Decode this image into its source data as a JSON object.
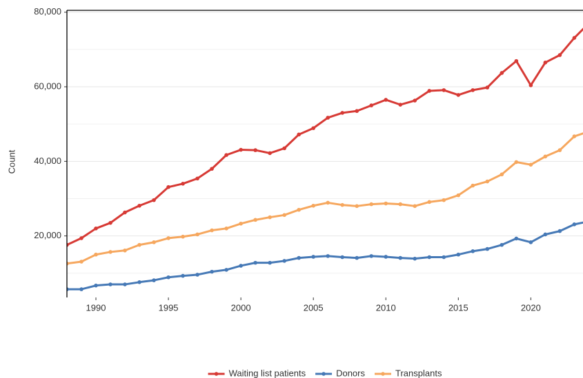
{
  "chart_data": {
    "type": "line",
    "y_label": "Count",
    "x": [
      1988,
      1989,
      1990,
      1991,
      1992,
      1993,
      1994,
      1995,
      1996,
      1997,
      1998,
      1999,
      2000,
      2001,
      2002,
      2003,
      2004,
      2005,
      2006,
      2007,
      2008,
      2009,
      2010,
      2011,
      2012,
      2013,
      2014,
      2015,
      2016,
      2017,
      2018,
      2019,
      2020,
      2021,
      2022,
      2023,
      2024
    ],
    "series": [
      {
        "name": "Waiting list patients",
        "color": "#d73a35",
        "values": [
          17600,
          19400,
          22000,
          23500,
          26300,
          28100,
          29600,
          33100,
          34000,
          35400,
          38000,
          41700,
          43100,
          43000,
          42200,
          43500,
          47200,
          48900,
          51700,
          53000,
          53500,
          55000,
          56500,
          55200,
          56300,
          58900,
          59100,
          57800,
          59100,
          59800,
          63700,
          66900,
          60400,
          66500,
          68500,
          73100,
          77000
        ]
      },
      {
        "name": "Donors",
        "color": "#4679b6",
        "values": [
          5700,
          5700,
          6700,
          7000,
          7000,
          7600,
          8100,
          8900,
          9300,
          9600,
          10400,
          10900,
          12000,
          12800,
          12800,
          13300,
          14100,
          14400,
          14600,
          14300,
          14100,
          14600,
          14400,
          14100,
          13900,
          14300,
          14300,
          15000,
          15900,
          16500,
          17600,
          19300,
          18300,
          20400,
          21300,
          23100,
          23900
        ]
      },
      {
        "name": "Transplants",
        "color": "#f6a75e",
        "values": [
          12600,
          13100,
          15000,
          15700,
          16100,
          17600,
          18300,
          19400,
          19800,
          20400,
          21500,
          22000,
          23300,
          24300,
          25000,
          25600,
          27000,
          28100,
          28900,
          28300,
          28000,
          28500,
          28700,
          28500,
          28000,
          29100,
          29600,
          30900,
          33500,
          34600,
          36500,
          39800,
          39100,
          41300,
          43000,
          46700,
          48000
        ]
      }
    ],
    "xlim": [
      1988,
      2023.6
    ],
    "xticks": [
      1990,
      1995,
      2000,
      2005,
      2010,
      2015,
      2020
    ],
    "ylim": [
      3500,
      80500
    ],
    "yticks": [
      {
        "value": 20000,
        "label": "20,000"
      },
      {
        "value": 40000,
        "label": "40,000"
      },
      {
        "value": 60000,
        "label": "60,000"
      },
      {
        "value": 80000,
        "label": "80,000"
      }
    ],
    "minor_yticks": [
      10000,
      30000,
      50000,
      70000
    ],
    "grid": true,
    "legend": "bottom"
  }
}
